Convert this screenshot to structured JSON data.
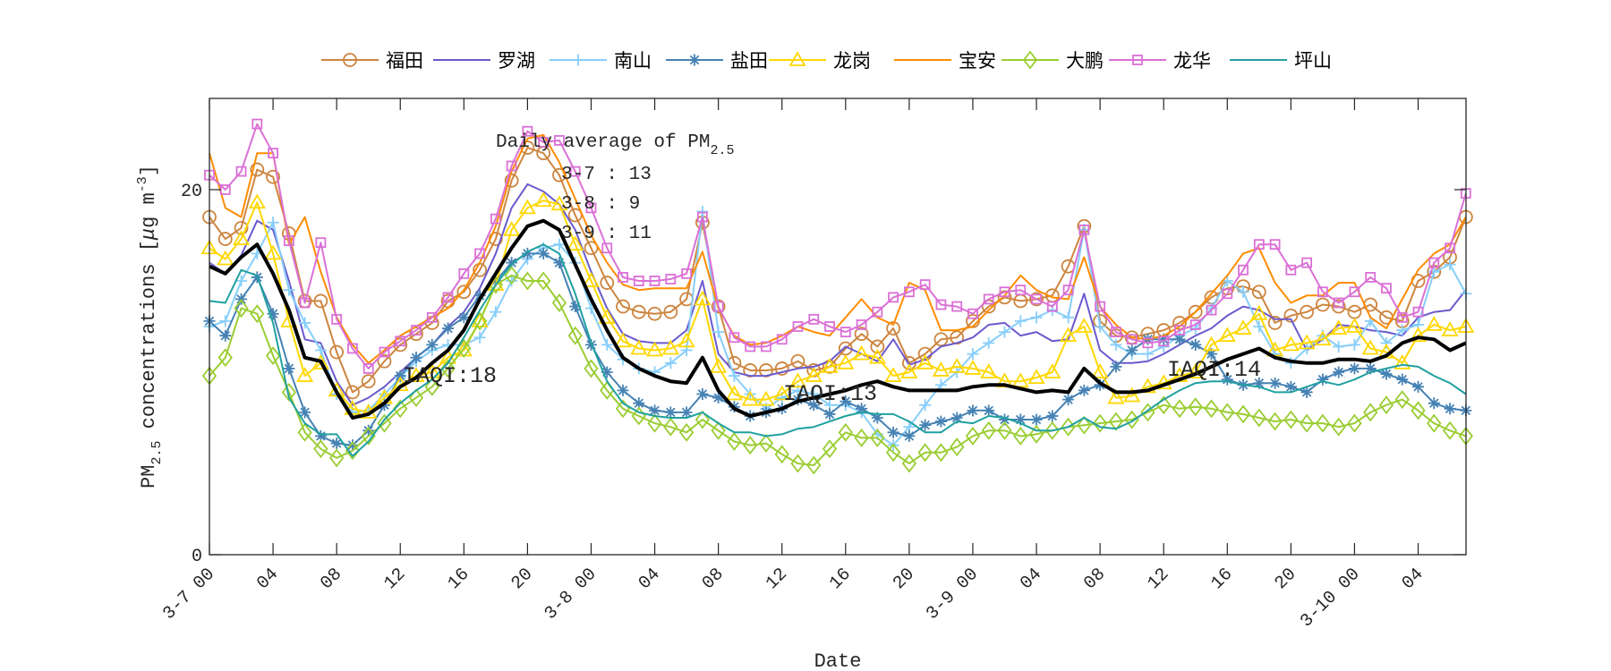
{
  "chart_data": {
    "type": "line",
    "xlabel": "Date",
    "ylabel_main": "PM",
    "ylabel_sub": "2.5",
    "ylabel_rest": " concentrations [",
    "ylabel_mu": "μ",
    "ylabel_unit": "g m",
    "ylabel_sup": "-3",
    "ylabel_close": "]",
    "ylim": [
      0,
      25
    ],
    "yticks": [
      0,
      20
    ],
    "x_hours_start": "3-7 00",
    "x": [
      0,
      1,
      2,
      3,
      4,
      5,
      6,
      7,
      8,
      9,
      10,
      11,
      12,
      13,
      14,
      15,
      16,
      17,
      18,
      19,
      20,
      21,
      22,
      23,
      24,
      25,
      26,
      27,
      28,
      29,
      30,
      31,
      32,
      33,
      34,
      35,
      36,
      37,
      38,
      39,
      40,
      41,
      42,
      43,
      44,
      45,
      46,
      47,
      48,
      49,
      50,
      51,
      52,
      53,
      54,
      55,
      56,
      57,
      58,
      59,
      60,
      61,
      62,
      63,
      64,
      65,
      66,
      67,
      68,
      69,
      70,
      71,
      72,
      73,
      74,
      75,
      76,
      77,
      78,
      79
    ],
    "xticks": [
      {
        "h": 0,
        "label": "3-7 00"
      },
      {
        "h": 4,
        "label": "04"
      },
      {
        "h": 8,
        "label": "08"
      },
      {
        "h": 12,
        "label": "12"
      },
      {
        "h": 16,
        "label": "16"
      },
      {
        "h": 20,
        "label": "20"
      },
      {
        "h": 24,
        "label": "3-8 00"
      },
      {
        "h": 28,
        "label": "04"
      },
      {
        "h": 32,
        "label": "08"
      },
      {
        "h": 36,
        "label": "12"
      },
      {
        "h": 40,
        "label": "16"
      },
      {
        "h": 44,
        "label": "20"
      },
      {
        "h": 48,
        "label": "3-9 00"
      },
      {
        "h": 52,
        "label": "04"
      },
      {
        "h": 56,
        "label": "08"
      },
      {
        "h": 60,
        "label": "12"
      },
      {
        "h": 64,
        "label": "16"
      },
      {
        "h": 68,
        "label": "20"
      },
      {
        "h": 72,
        "label": "3-10 00"
      },
      {
        "h": 76,
        "label": "04"
      }
    ],
    "grid": false,
    "legend_placement": "top-outside",
    "series": [
      {
        "name": "福田",
        "color": "#CD853F",
        "marker": "circle",
        "values": [
          18.5,
          17.3,
          17.9,
          21.1,
          20.7,
          17.6,
          13.9,
          13.9,
          11.1,
          8.9,
          9.5,
          10.6,
          11.5,
          12.1,
          12.7,
          13.9,
          14.4,
          15.6,
          17.3,
          20.5,
          22.3,
          22.0,
          20.8,
          18.6,
          16.8,
          14.9,
          13.6,
          13.3,
          13.2,
          13.3,
          14.0,
          18.2,
          13.6,
          10.5,
          10.1,
          10.1,
          10.2,
          10.6,
          10.1,
          10.3,
          11.3,
          12.1,
          11.4,
          12.4,
          10.5,
          11.0,
          11.8,
          11.9,
          12.8,
          13.6,
          14.1,
          13.9,
          14.0,
          14.2,
          15.8,
          18.0,
          12.8,
          12.0,
          11.9,
          12.1,
          12.3,
          12.7,
          13.3,
          14.1,
          14.6,
          14.7,
          14.4,
          12.7,
          13.1,
          13.3,
          13.7,
          13.6,
          13.3,
          13.7,
          13.0,
          12.8,
          15.0,
          15.5,
          16.3,
          18.5
        ]
      },
      {
        "name": "罗湖",
        "color": "#6A5ACD",
        "marker": "none",
        "values": [
          16.0,
          15.4,
          16.4,
          18.3,
          17.8,
          15.0,
          11.8,
          11.6,
          9.5,
          8.2,
          8.6,
          9.2,
          10.0,
          10.8,
          11.5,
          12.5,
          13.3,
          14.6,
          16.5,
          19.0,
          20.3,
          19.9,
          19.2,
          17.8,
          15.5,
          13.5,
          12.1,
          11.7,
          11.6,
          11.6,
          12.3,
          15.0,
          11.0,
          10.0,
          9.8,
          9.8,
          10.0,
          10.2,
          10.3,
          10.6,
          11.4,
          11.0,
          10.6,
          11.8,
          10.4,
          10.7,
          11.4,
          11.6,
          11.9,
          12.6,
          12.7,
          12.0,
          12.2,
          11.7,
          11.8,
          14.3,
          11.2,
          10.5,
          10.5,
          10.6,
          11.0,
          11.5,
          12.0,
          12.4,
          13.1,
          13.6,
          13.4,
          12.9,
          12.9,
          11.2,
          11.8,
          12.6,
          12.5,
          12.3,
          12.2,
          12.0,
          13.0,
          13.3,
          13.4,
          14.5
        ]
      },
      {
        "name": "南山",
        "color": "#87CEFA",
        "marker": "plus",
        "values": [
          12.5,
          12.8,
          15.0,
          16.5,
          18.2,
          14.5,
          12.7,
          11.2,
          8.8,
          7.8,
          7.9,
          8.8,
          9.7,
          10.6,
          11.2,
          11.5,
          11.5,
          11.9,
          13.3,
          15.0,
          16.2,
          16.8,
          17.0,
          16.0,
          13.5,
          11.5,
          10.7,
          10.2,
          10.0,
          10.5,
          11.2,
          18.8,
          12.2,
          9.8,
          8.8,
          8.0,
          8.6,
          9.0,
          8.8,
          8.2,
          8.2,
          7.8,
          6.6,
          6.0,
          7.0,
          8.2,
          9.3,
          10.0,
          11.0,
          11.6,
          12.2,
          12.8,
          13.0,
          13.4,
          13.0,
          17.8,
          12.5,
          11.5,
          11.0,
          11.0,
          11.4,
          12.0,
          12.4,
          13.5,
          15.0,
          14.4,
          12.5,
          11.0,
          10.5,
          11.3,
          12.0,
          11.4,
          11.5,
          12.8,
          11.6,
          12.3,
          12.6,
          15.5,
          15.9,
          14.3
        ]
      },
      {
        "name": "盐田",
        "color": "#4682B4",
        "marker": "asterisk",
        "values": [
          12.8,
          12.0,
          14.0,
          15.2,
          13.2,
          10.2,
          7.8,
          6.5,
          6.1,
          6.0,
          6.8,
          8.2,
          9.8,
          10.8,
          11.5,
          12.4,
          13.0,
          14.2,
          15.0,
          16.0,
          16.5,
          16.5,
          16.0,
          13.6,
          11.5,
          10.0,
          9.0,
          8.3,
          7.9,
          7.8,
          7.8,
          8.8,
          8.6,
          8.1,
          7.6,
          7.8,
          8.0,
          8.5,
          8.2,
          7.7,
          8.4,
          8.0,
          7.5,
          6.7,
          6.5,
          7.1,
          7.3,
          7.5,
          7.9,
          7.9,
          7.4,
          7.4,
          7.4,
          7.6,
          8.5,
          9.0,
          9.3,
          10.3,
          11.2,
          11.8,
          11.8,
          11.8,
          11.5,
          11.0,
          9.6,
          9.3,
          9.4,
          9.4,
          9.2,
          8.9,
          9.6,
          10.0,
          10.2,
          10.2,
          9.9,
          9.6,
          9.2,
          8.3,
          8.0,
          7.9
        ]
      },
      {
        "name": "龙岗",
        "color": "#FFD700",
        "marker": "triangle",
        "values": [
          16.8,
          16.2,
          17.3,
          19.3,
          16.5,
          12.8,
          9.8,
          10.5,
          9.0,
          8.0,
          7.8,
          8.6,
          9.3,
          9.8,
          10.0,
          10.8,
          11.2,
          12.8,
          14.8,
          17.8,
          19.0,
          19.4,
          19.2,
          17.0,
          15.0,
          13.0,
          11.7,
          11.3,
          11.2,
          11.3,
          11.7,
          14.0,
          10.3,
          8.8,
          8.5,
          8.5,
          8.8,
          9.5,
          9.8,
          10.3,
          10.5,
          11.0,
          10.8,
          9.8,
          10.0,
          10.5,
          10.1,
          10.3,
          10.2,
          10.0,
          9.5,
          9.5,
          9.7,
          10.0,
          12.0,
          12.5,
          10.0,
          8.6,
          8.7,
          9.2,
          9.4,
          9.8,
          10.0,
          11.5,
          12.0,
          12.4,
          13.2,
          11.2,
          11.5,
          11.6,
          11.8,
          12.4,
          12.5,
          11.3,
          11.1,
          10.5,
          12.0,
          12.6,
          12.3,
          12.5
        ]
      },
      {
        "name": "宝安",
        "color": "#FF8C00",
        "marker": "none",
        "values": [
          22.0,
          19.0,
          18.5,
          22.0,
          22.0,
          17.0,
          18.5,
          15.5,
          13.0,
          11.5,
          10.5,
          11.2,
          12.0,
          12.5,
          13.0,
          13.5,
          14.5,
          16.0,
          18.0,
          21.0,
          22.8,
          23.0,
          21.5,
          19.5,
          17.5,
          16.0,
          14.8,
          14.5,
          14.6,
          14.6,
          14.6,
          16.6,
          13.5,
          12.0,
          11.5,
          11.6,
          12.0,
          12.5,
          12.2,
          12.0,
          13.0,
          14.0,
          13.0,
          12.6,
          14.9,
          14.5,
          12.3,
          12.3,
          12.5,
          13.4,
          14.2,
          15.3,
          14.5,
          14.1,
          14.0,
          16.3,
          13.6,
          12.6,
          11.9,
          11.8,
          12.0,
          12.5,
          13.3,
          14.3,
          15.3,
          16.5,
          16.8,
          14.9,
          13.8,
          14.2,
          14.2,
          14.9,
          14.9,
          13.0,
          12.4,
          14.0,
          15.6,
          16.5,
          17.0,
          18.5
        ]
      },
      {
        "name": "大鹏",
        "color": "#9ACD32",
        "marker": "diamond",
        "values": [
          9.8,
          10.8,
          13.5,
          13.2,
          10.9,
          8.9,
          6.7,
          5.8,
          5.3,
          5.7,
          6.5,
          7.2,
          8.0,
          8.6,
          9.2,
          10.2,
          11.3,
          12.8,
          14.8,
          15.3,
          15.0,
          15.0,
          13.8,
          12.0,
          10.2,
          9.0,
          8.0,
          7.6,
          7.2,
          7.0,
          6.7,
          7.4,
          6.8,
          6.2,
          6.0,
          6.1,
          5.5,
          5.0,
          4.9,
          5.8,
          6.7,
          6.4,
          6.4,
          5.6,
          5.0,
          5.6,
          5.6,
          5.9,
          6.5,
          6.8,
          6.8,
          6.5,
          6.6,
          6.8,
          7.0,
          7.1,
          7.2,
          7.3,
          7.4,
          7.8,
          8.2,
          8.0,
          8.1,
          8.0,
          7.8,
          7.7,
          7.5,
          7.3,
          7.4,
          7.2,
          7.2,
          7.0,
          7.2,
          7.8,
          8.2,
          8.5,
          7.9,
          7.2,
          6.8,
          6.5
        ]
      },
      {
        "name": "龙华",
        "color": "#DA70D6",
        "marker": "square",
        "values": [
          20.8,
          20.0,
          21.0,
          23.6,
          22.0,
          17.2,
          13.8,
          17.1,
          12.9,
          11.3,
          10.2,
          11.1,
          11.7,
          12.3,
          13.0,
          14.1,
          15.4,
          16.5,
          18.4,
          21.3,
          23.2,
          22.6,
          22.7,
          21.0,
          19.0,
          16.8,
          15.2,
          15.0,
          15.0,
          15.1,
          15.4,
          18.5,
          13.6,
          11.9,
          11.4,
          11.4,
          11.8,
          12.5,
          12.9,
          12.5,
          12.2,
          12.6,
          13.3,
          14.1,
          14.4,
          14.8,
          13.7,
          13.6,
          13.2,
          14.0,
          14.4,
          14.5,
          14.0,
          13.6,
          14.5,
          17.8,
          13.6,
          12.2,
          11.8,
          11.6,
          11.7,
          12.3,
          12.6,
          13.4,
          14.3,
          15.6,
          17.0,
          17.0,
          15.6,
          16.0,
          14.4,
          13.8,
          14.4,
          15.2,
          14.6,
          13.0,
          13.3,
          16.0,
          16.8,
          19.8
        ]
      },
      {
        "name": "坪山",
        "color": "#20A0A0",
        "marker": "none",
        "values": [
          13.9,
          13.8,
          15.6,
          15.3,
          12.7,
          8.6,
          7.2,
          6.6,
          6.6,
          5.4,
          6.2,
          7.4,
          8.3,
          9.0,
          9.6,
          10.5,
          11.9,
          13.4,
          14.8,
          15.9,
          16.6,
          17.0,
          16.5,
          14.3,
          11.6,
          9.5,
          8.3,
          7.8,
          7.6,
          7.5,
          7.5,
          7.8,
          7.2,
          6.7,
          6.7,
          6.5,
          6.6,
          6.9,
          7.0,
          7.3,
          7.6,
          7.8,
          7.7,
          7.7,
          7.3,
          6.7,
          6.7,
          7.3,
          7.2,
          7.6,
          7.5,
          7.2,
          6.8,
          6.8,
          7.0,
          7.5,
          7.0,
          6.9,
          7.3,
          7.9,
          8.5,
          9.0,
          9.4,
          9.5,
          9.5,
          9.3,
          9.2,
          8.9,
          8.9,
          9.2,
          9.5,
          9.3,
          9.6,
          10.0,
          10.2,
          10.4,
          10.3,
          9.8,
          9.4,
          8.8
        ]
      }
    ],
    "mean_series": {
      "color": "#000000",
      "values": [
        15.8,
        15.4,
        16.3,
        17.0,
        15.4,
        13.4,
        10.8,
        10.6,
        8.9,
        7.5,
        7.7,
        8.3,
        9.2,
        9.7,
        10.5,
        11.2,
        12.3,
        14.0,
        15.4,
        16.8,
        18.0,
        18.3,
        17.8,
        15.9,
        14.0,
        12.3,
        10.8,
        10.2,
        9.8,
        9.5,
        9.4,
        10.8,
        9.0,
        8.0,
        7.6,
        7.8,
        8.0,
        8.4,
        8.6,
        8.8,
        9.0,
        9.3,
        9.5,
        9.2,
        9.0,
        9.0,
        9.0,
        9.0,
        9.2,
        9.3,
        9.3,
        9.1,
        8.9,
        9.0,
        8.9,
        10.2,
        9.4,
        8.9,
        8.9,
        9.0,
        9.3,
        9.6,
        9.9,
        10.3,
        10.7,
        11.0,
        11.3,
        10.8,
        10.6,
        10.5,
        10.5,
        10.7,
        10.7,
        10.6,
        10.9,
        11.6,
        11.9,
        11.8,
        11.2,
        11.6
      ]
    },
    "annotations": {
      "daily_title": "Daily average of PM",
      "daily_title_sub": "2.5",
      "daily": [
        "3-7 : 13",
        "3-8 : 9",
        "3-9 : 11"
      ],
      "iaqi": [
        {
          "h": 12,
          "text": "IAQI:18"
        },
        {
          "h": 36,
          "text": "IAQI:13"
        },
        {
          "h": 60,
          "text": "IAQI:14"
        }
      ]
    }
  }
}
